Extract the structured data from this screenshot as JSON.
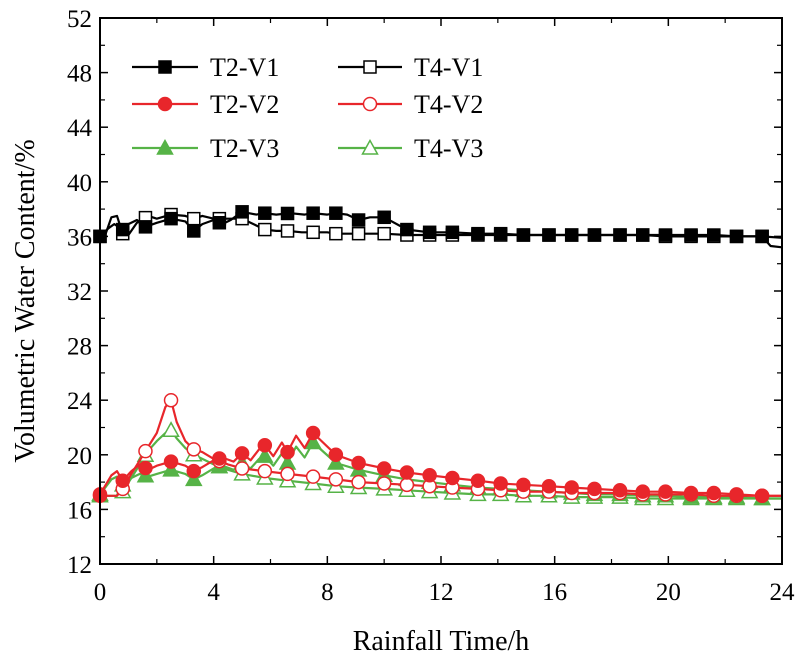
{
  "chart_data": {
    "type": "line",
    "title": "",
    "xlabel": "Rainfall Time/h",
    "ylabel": "Volumetric Water Content/%",
    "xlim": [
      0,
      24
    ],
    "ylim": [
      12,
      52
    ],
    "xticks": [
      0,
      4,
      8,
      12,
      16,
      20,
      24
    ],
    "yticks": [
      12,
      16,
      20,
      24,
      28,
      32,
      36,
      40,
      44,
      48,
      52
    ],
    "xtick_labels": [
      "0",
      "4",
      "8",
      "12",
      "16",
      "20",
      "24"
    ],
    "ytick_labels": [
      "12",
      "16",
      "20",
      "24",
      "28",
      "32",
      "36",
      "40",
      "44",
      "48",
      "52"
    ],
    "grid": false,
    "legend_position": "top-left",
    "series": [
      {
        "name": "T2-V1",
        "color": "#000000",
        "marker": "square",
        "filled": true,
        "x": [
          0,
          0.3,
          0.5,
          0.8,
          1.0,
          1.3,
          1.6,
          2.0,
          2.5,
          3.0,
          3.3,
          3.6,
          4.0,
          4.3,
          4.6,
          5.0,
          5.5,
          5.8,
          6.2,
          6.7,
          7.2,
          7.5,
          8.0,
          8.3,
          8.7,
          9.1,
          9.5,
          10.0,
          10.8,
          11.6,
          12.4,
          13.3,
          14.1,
          14.9,
          15.8,
          16.6,
          17.4,
          18.3,
          19.1,
          19.9,
          20.8,
          21.6,
          22.4,
          23.3,
          24.0
        ],
        "y": [
          36.0,
          36.6,
          36.9,
          36.5,
          36.9,
          37.2,
          36.7,
          37.0,
          37.3,
          37.1,
          36.4,
          36.9,
          37.2,
          36.9,
          37.2,
          37.8,
          37.6,
          37.7,
          37.6,
          37.7,
          37.6,
          37.7,
          37.6,
          37.7,
          37.6,
          37.2,
          37.4,
          37.4,
          36.5,
          36.3,
          36.3,
          36.2,
          36.2,
          36.1,
          36.1,
          36.1,
          36.1,
          36.1,
          36.1,
          36.1,
          36.1,
          36.1,
          36.0,
          36.0,
          35.9
        ],
        "markers_x": [
          0,
          0.8,
          1.6,
          2.5,
          3.3,
          4.2,
          5.0,
          5.8,
          6.6,
          7.5,
          8.3,
          9.1,
          10.0,
          10.8,
          11.6,
          12.4,
          13.3,
          14.1,
          14.9,
          15.8,
          16.6,
          17.4,
          18.3,
          19.1,
          19.9,
          20.8,
          21.6,
          22.4,
          23.3
        ]
      },
      {
        "name": "T4-V1",
        "color": "#000000",
        "marker": "square",
        "filled": false,
        "x": [
          0,
          0.2,
          0.4,
          0.6,
          0.8,
          1.0,
          1.3,
          1.7,
          2.0,
          2.5,
          3.0,
          3.3,
          3.6,
          4.0,
          4.5,
          5.0,
          5.4,
          5.8,
          6.2,
          6.6,
          7.1,
          7.5,
          8.0,
          8.3,
          9.1,
          10.0,
          10.8,
          11.6,
          12.4,
          13.3,
          14.1,
          14.9,
          15.8,
          16.6,
          17.4,
          18.3,
          19.1,
          19.9,
          20.8,
          21.6,
          22.4,
          23.3,
          23.6,
          24.0
        ],
        "y": [
          36.0,
          36.2,
          37.4,
          37.5,
          36.2,
          36.1,
          37.0,
          37.5,
          37.3,
          37.6,
          37.5,
          37.3,
          37.5,
          37.3,
          37.3,
          37.3,
          36.9,
          36.5,
          36.4,
          36.4,
          36.3,
          36.3,
          36.3,
          36.2,
          36.2,
          36.2,
          36.1,
          36.1,
          36.1,
          36.1,
          36.1,
          36.1,
          36.1,
          36.1,
          36.1,
          36.1,
          36.1,
          36.0,
          36.0,
          36.0,
          36.0,
          36.0,
          35.3,
          35.2
        ],
        "markers_x": [
          0,
          0.8,
          1.6,
          2.5,
          3.3,
          4.2,
          5.0,
          5.8,
          6.6,
          7.5,
          8.3,
          9.1,
          10.0,
          10.8,
          11.6,
          12.4,
          13.3,
          14.1,
          14.9,
          15.8,
          16.6,
          17.4,
          18.3,
          19.1,
          19.9,
          20.8,
          21.6,
          22.4,
          23.3
        ]
      },
      {
        "name": "T2-V2",
        "color": "#e8262b",
        "marker": "circle",
        "filled": true,
        "x": [
          0,
          0.4,
          0.6,
          0.8,
          1.1,
          1.4,
          1.7,
          2.0,
          2.5,
          3.0,
          3.3,
          3.6,
          4.0,
          4.3,
          4.7,
          5.0,
          5.3,
          5.6,
          5.8,
          6.1,
          6.4,
          6.6,
          6.9,
          7.2,
          7.5,
          8.3,
          9.1,
          10.0,
          10.8,
          11.6,
          12.4,
          13.3,
          14.1,
          14.9,
          15.8,
          16.6,
          17.4,
          18.3,
          19.1,
          19.9,
          20.8,
          21.6,
          22.4,
          23.3,
          24.0
        ],
        "y": [
          17.1,
          18.5,
          18.8,
          18.1,
          18.8,
          19.3,
          18.9,
          19.2,
          19.5,
          19.2,
          18.8,
          19.1,
          19.6,
          19.8,
          19.5,
          20.1,
          19.6,
          20.4,
          20.7,
          19.9,
          20.9,
          20.2,
          21.4,
          20.5,
          21.6,
          20.0,
          19.4,
          19.0,
          18.7,
          18.5,
          18.3,
          18.1,
          17.9,
          17.8,
          17.7,
          17.6,
          17.5,
          17.4,
          17.3,
          17.3,
          17.2,
          17.2,
          17.1,
          17.0,
          17.0
        ],
        "markers_x": [
          0,
          0.8,
          1.6,
          2.5,
          3.3,
          4.2,
          5.0,
          5.8,
          6.6,
          7.5,
          8.3,
          9.1,
          10.0,
          10.8,
          11.6,
          12.4,
          13.3,
          14.1,
          14.9,
          15.8,
          16.6,
          17.4,
          18.3,
          19.1,
          19.9,
          20.8,
          21.6,
          22.4,
          23.3
        ]
      },
      {
        "name": "T4-V2",
        "color": "#e8262b",
        "marker": "circle",
        "filled": false,
        "x": [
          0,
          0.6,
          0.8,
          1.1,
          1.4,
          1.7,
          2.0,
          2.3,
          2.5,
          2.7,
          3.0,
          3.3,
          3.6,
          4.0,
          4.5,
          5.0,
          5.8,
          6.6,
          7.5,
          8.3,
          9.1,
          10.0,
          10.8,
          11.6,
          12.4,
          13.3,
          14.1,
          14.9,
          15.8,
          16.6,
          17.4,
          18.3,
          19.1,
          19.9,
          20.8,
          21.6,
          22.4,
          23.3,
          24.0
        ],
        "y": [
          17.0,
          17.0,
          17.5,
          18.6,
          19.6,
          20.6,
          21.6,
          23.5,
          24.0,
          22.4,
          21.0,
          20.4,
          20.2,
          19.7,
          19.3,
          19.0,
          18.8,
          18.6,
          18.4,
          18.2,
          18.0,
          17.9,
          17.8,
          17.7,
          17.6,
          17.5,
          17.4,
          17.3,
          17.3,
          17.2,
          17.2,
          17.2,
          17.1,
          17.1,
          17.1,
          17.0,
          17.0,
          17.0,
          17.0
        ],
        "markers_x": [
          0,
          0.8,
          1.6,
          2.5,
          3.3,
          4.2,
          5.0,
          5.8,
          6.6,
          7.5,
          8.3,
          9.1,
          10.0,
          10.8,
          11.6,
          12.4,
          13.3,
          14.1,
          14.9,
          15.8,
          16.6,
          17.4,
          18.3,
          19.1,
          19.9,
          20.8,
          21.6,
          22.4,
          23.3
        ]
      },
      {
        "name": "T2-V3",
        "color": "#56b347",
        "marker": "triangle",
        "filled": true,
        "x": [
          0,
          0.4,
          0.6,
          0.8,
          1.1,
          1.4,
          1.7,
          2.0,
          2.5,
          3.0,
          3.3,
          3.6,
          4.0,
          4.3,
          4.7,
          5.0,
          5.3,
          5.6,
          5.8,
          6.1,
          6.4,
          6.6,
          6.9,
          7.2,
          7.5,
          8.3,
          9.1,
          10.0,
          10.8,
          11.6,
          12.4,
          13.3,
          14.1,
          14.9,
          15.8,
          16.6,
          17.4,
          18.3,
          19.1,
          19.9,
          20.8,
          21.6,
          22.4,
          23.3,
          24.0
        ],
        "y": [
          17.1,
          18.2,
          18.4,
          17.8,
          18.3,
          18.6,
          18.4,
          18.6,
          18.9,
          18.6,
          18.2,
          18.5,
          19.0,
          19.2,
          18.9,
          19.4,
          19.0,
          19.7,
          19.9,
          19.2,
          20.1,
          19.4,
          20.6,
          19.8,
          20.9,
          19.4,
          18.9,
          18.5,
          18.2,
          18.0,
          17.8,
          17.6,
          17.5,
          17.4,
          17.3,
          17.2,
          17.1,
          17.1,
          17.0,
          17.0,
          16.9,
          16.9,
          16.9,
          16.8,
          16.8
        ],
        "markers_x": [
          0,
          0.8,
          1.6,
          2.5,
          3.3,
          4.2,
          5.0,
          5.8,
          6.6,
          7.5,
          8.3,
          9.1,
          10.0,
          10.8,
          11.6,
          12.4,
          13.3,
          14.1,
          14.9,
          15.8,
          16.6,
          17.4,
          18.3,
          19.1,
          19.9,
          20.8,
          21.6,
          22.4,
          23.3
        ]
      },
      {
        "name": "T4-V3",
        "color": "#56b347",
        "marker": "triangle",
        "filled": false,
        "x": [
          0,
          0.6,
          0.8,
          1.1,
          1.4,
          1.7,
          2.0,
          2.3,
          2.5,
          2.7,
          3.0,
          3.3,
          3.6,
          4.0,
          4.5,
          5.0,
          5.8,
          6.6,
          7.5,
          8.3,
          9.1,
          10.0,
          10.8,
          11.6,
          12.4,
          13.3,
          14.1,
          14.9,
          15.8,
          16.6,
          17.4,
          18.3,
          19.1,
          19.9,
          20.8,
          21.6,
          22.4,
          23.3,
          24.0
        ],
        "y": [
          17.0,
          17.0,
          17.3,
          18.3,
          19.3,
          20.3,
          21.0,
          21.6,
          21.8,
          21.2,
          20.5,
          20.0,
          19.7,
          19.3,
          18.9,
          18.6,
          18.3,
          18.1,
          17.9,
          17.7,
          17.6,
          17.5,
          17.4,
          17.3,
          17.2,
          17.1,
          17.1,
          17.0,
          17.0,
          16.9,
          16.9,
          16.9,
          16.8,
          16.8,
          16.8,
          16.8,
          16.8,
          16.8,
          16.8
        ],
        "markers_x": [
          0,
          0.8,
          1.6,
          2.5,
          3.3,
          4.2,
          5.0,
          5.8,
          6.6,
          7.5,
          8.3,
          9.1,
          10.0,
          10.8,
          11.6,
          12.4,
          13.3,
          14.1,
          14.9,
          15.8,
          16.6,
          17.4,
          18.3,
          19.1,
          19.9,
          20.8,
          21.6,
          22.4,
          23.3
        ]
      }
    ]
  }
}
